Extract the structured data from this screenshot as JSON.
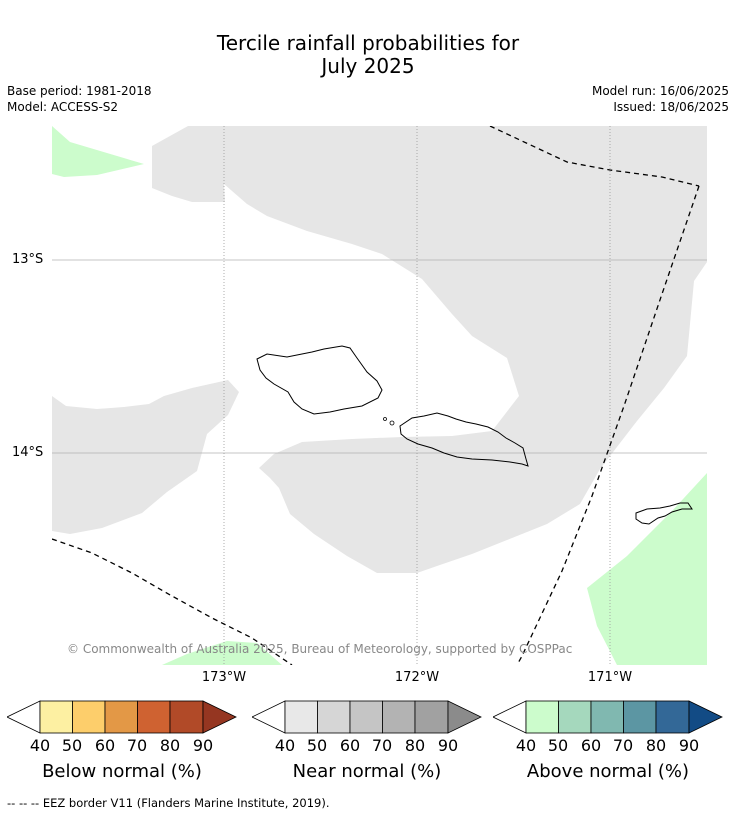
{
  "title_line1": "Tercile rainfall probabilities for",
  "title_line2": "July 2025",
  "base_period": "Base period: 1981-2018",
  "model": "Model: ACCESS-S2",
  "model_run": "Model run: 16/06/2025",
  "issued": "Issued: 18/06/2025",
  "lat_labels": [
    "13°S",
    "14°S"
  ],
  "lon_labels": [
    "173°W",
    "172°W",
    "171°W"
  ],
  "copyright": "© Commonwealth of Australia 2025, Bureau of Meteorology, supported by COSPPac",
  "legend": {
    "ticks": [
      "40",
      "50",
      "60",
      "70",
      "80",
      "90"
    ],
    "below": {
      "label": "Below normal (%)",
      "colors": [
        "#fdf0a2",
        "#fdce6b",
        "#e39846",
        "#cf6231",
        "#b14a28",
        "#953621"
      ]
    },
    "near": {
      "label": "Near normal (%)",
      "colors": [
        "#e8e8e8",
        "#d6d6d6",
        "#c5c5c5",
        "#b3b3b3",
        "#a1a1a1",
        "#8b8b8b"
      ]
    },
    "above": {
      "label": "Above normal (%)",
      "colors": [
        "#ccfccc",
        "#a5d8bd",
        "#80b8b0",
        "#5c96a3",
        "#336897",
        "#124b85"
      ]
    }
  },
  "footnote": "--  --  -- EEZ border V11 (Flanders Marine Institute, 2019).",
  "colors": {
    "near_normal_region": "#e6e6e6",
    "above_normal_region": "#ccfccc"
  }
}
